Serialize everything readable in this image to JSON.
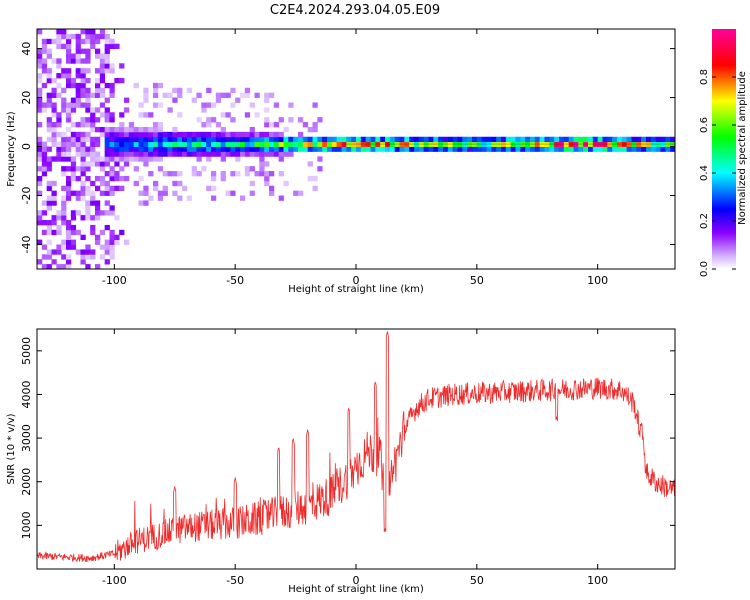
{
  "title": "C2E4.2024.293.04.05.E09",
  "chart_data": [
    {
      "type": "heatmap",
      "xlabel": "Height of straight line (km)",
      "ylabel": "Frequency (Hz)",
      "xlim": [
        -132,
        132
      ],
      "ylim": [
        -50,
        48
      ],
      "xticks": [
        -100,
        -50,
        0,
        50,
        100
      ],
      "yticks": [
        -40,
        -20,
        0,
        20,
        40
      ],
      "colorbar": {
        "label": "Normalized spectral amplitude",
        "range": [
          0,
          1
        ],
        "ticks": [
          "0.0",
          "0.2",
          "0.4",
          "0.6",
          "0.8"
        ],
        "colors": [
          "#ffffff",
          "#8a00ff",
          "#0000ff",
          "#00ffff",
          "#00ff00",
          "#ffff00",
          "#ff0000",
          "#ff00aa"
        ]
      },
      "band": {
        "center_freq": [
          {
            "x": -100,
            "y": 1
          },
          {
            "x": -50,
            "y": 1
          },
          {
            "x": 0,
            "y": 1
          },
          {
            "x": 50,
            "y": 1
          },
          {
            "x": 100,
            "y": 1
          },
          {
            "x": 132,
            "y": 1
          }
        ],
        "halfwidth_hz": [
          {
            "x": -100,
            "y": 7
          },
          {
            "x": -60,
            "y": 5
          },
          {
            "x": -30,
            "y": 4
          },
          {
            "x": 0,
            "y": 3
          },
          {
            "x": 132,
            "y": 3
          }
        ],
        "peak_amplitude": [
          {
            "x": -100,
            "y": 0.35
          },
          {
            "x": -80,
            "y": 0.45
          },
          {
            "x": -50,
            "y": 0.5
          },
          {
            "x": -25,
            "y": 0.7
          },
          {
            "x": 0,
            "y": 0.85
          },
          {
            "x": 50,
            "y": 0.6
          },
          {
            "x": 90,
            "y": 0.95
          },
          {
            "x": 100,
            "y": 0.9
          },
          {
            "x": 132,
            "y": 0.55
          }
        ],
        "noise_extent_km": [
          -132,
          -100
        ]
      }
    },
    {
      "type": "line",
      "xlabel": "Height of straight line (km)",
      "ylabel": "SNR (10 * v/v)",
      "xlim": [
        -132,
        132
      ],
      "ylim": [
        0,
        5500
      ],
      "xticks": [
        -100,
        -50,
        0,
        50,
        100
      ],
      "yticks": [
        1000,
        2000,
        3000,
        4000,
        5000
      ],
      "series": [
        {
          "color": "#ee2a2a",
          "envelope": [
            {
              "x": -132,
              "y": 300
            },
            {
              "x": -110,
              "y": 250
            },
            {
              "x": -100,
              "y": 350
            },
            {
              "x": -90,
              "y": 650
            },
            {
              "x": -80,
              "y": 800
            },
            {
              "x": -70,
              "y": 950
            },
            {
              "x": -60,
              "y": 1000
            },
            {
              "x": -50,
              "y": 1050
            },
            {
              "x": -40,
              "y": 1150
            },
            {
              "x": -30,
              "y": 1300
            },
            {
              "x": -20,
              "y": 1450
            },
            {
              "x": -10,
              "y": 1700
            },
            {
              "x": 0,
              "y": 2300
            },
            {
              "x": 5,
              "y": 2700
            },
            {
              "x": 10,
              "y": 2600
            },
            {
              "x": 12,
              "y": 1500
            },
            {
              "x": 15,
              "y": 2200
            },
            {
              "x": 20,
              "y": 3200
            },
            {
              "x": 25,
              "y": 3700
            },
            {
              "x": 30,
              "y": 3900
            },
            {
              "x": 40,
              "y": 4000
            },
            {
              "x": 60,
              "y": 4050
            },
            {
              "x": 80,
              "y": 4100
            },
            {
              "x": 100,
              "y": 4150
            },
            {
              "x": 110,
              "y": 4100
            },
            {
              "x": 115,
              "y": 3800
            },
            {
              "x": 117,
              "y": 3300
            },
            {
              "x": 119,
              "y": 3000
            },
            {
              "x": 120,
              "y": 2200
            },
            {
              "x": 125,
              "y": 1950
            },
            {
              "x": 132,
              "y": 1800
            }
          ],
          "peaks": [
            {
              "x": 13,
              "y": 5450
            },
            {
              "x": 8,
              "y": 4300
            },
            {
              "x": -75,
              "y": 1900
            },
            {
              "x": -50,
              "y": 2100
            },
            {
              "x": -32,
              "y": 2800
            },
            {
              "x": -26,
              "y": 3000
            },
            {
              "x": -20,
              "y": 3200
            },
            {
              "x": -3,
              "y": 3700
            },
            {
              "x": 12,
              "y": 950
            },
            {
              "x": 83,
              "y": 3500
            }
          ]
        }
      ]
    }
  ]
}
